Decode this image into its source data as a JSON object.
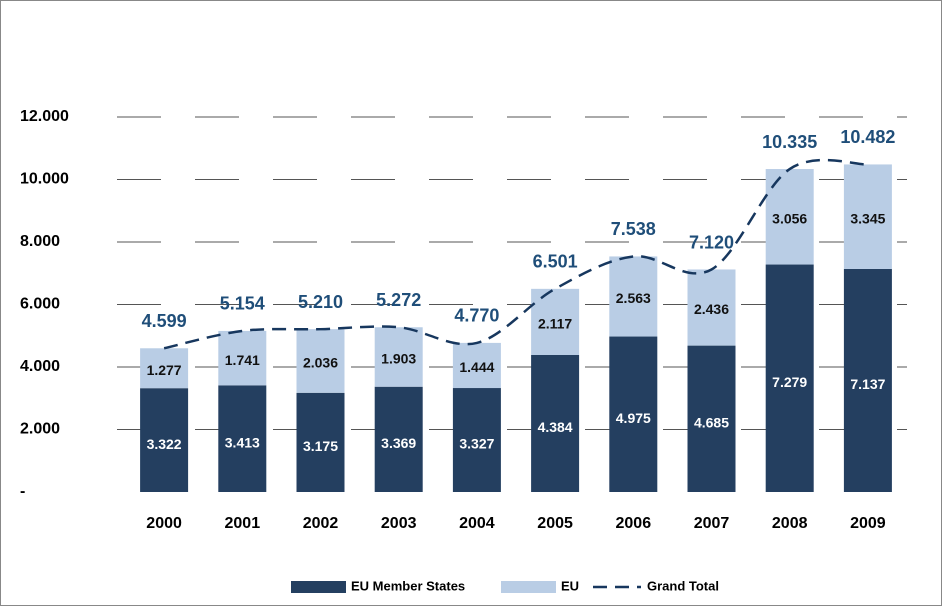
{
  "chart_data": {
    "type": "bar",
    "stacked": true,
    "categories": [
      "2000",
      "2001",
      "2002",
      "2003",
      "2004",
      "2005",
      "2006",
      "2007",
      "2008",
      "2009"
    ],
    "series": [
      {
        "name": "EU Member States",
        "color": "#243f60",
        "values": [
          3322,
          3413,
          3175,
          3369,
          3327,
          4384,
          4975,
          4685,
          7279,
          7137
        ],
        "value_labels": [
          "3.322",
          "3.413",
          "3.175",
          "3.369",
          "3.327",
          "4.384",
          "4.975",
          "4.685",
          "7.279",
          "7.137"
        ]
      },
      {
        "name": "EU",
        "color": "#b9cde5",
        "values": [
          1277,
          1741,
          2036,
          1903,
          1444,
          2117,
          2563,
          2436,
          3056,
          3345
        ],
        "value_labels": [
          "1.277",
          "1.741",
          "2.036",
          "1.903",
          "1.444",
          "2.117",
          "2.563",
          "2.436",
          "3.056",
          "3.345"
        ]
      },
      {
        "name": "Grand Total",
        "color": "#17375e",
        "type": "line",
        "dashed": true,
        "smooth": true,
        "values": [
          4599,
          5154,
          5210,
          5272,
          4770,
          6501,
          7538,
          7120,
          10335,
          10482
        ],
        "value_labels": [
          "4.599",
          "5.154",
          "5.210",
          "5.272",
          "4.770",
          "6.501",
          "7.538",
          "7.120",
          "10.335",
          "10.482"
        ]
      }
    ],
    "ylim": [
      0,
      12000
    ],
    "yticks": [
      {
        "value": 0,
        "label": "-"
      },
      {
        "value": 2000,
        "label": "2.000"
      },
      {
        "value": 4000,
        "label": "4.000"
      },
      {
        "value": 6000,
        "label": "6.000"
      },
      {
        "value": 8000,
        "label": "8.000"
      },
      {
        "value": 10000,
        "label": "10.000"
      },
      {
        "value": 12000,
        "label": "12.000"
      }
    ],
    "grid": true,
    "legend": "bottom"
  }
}
